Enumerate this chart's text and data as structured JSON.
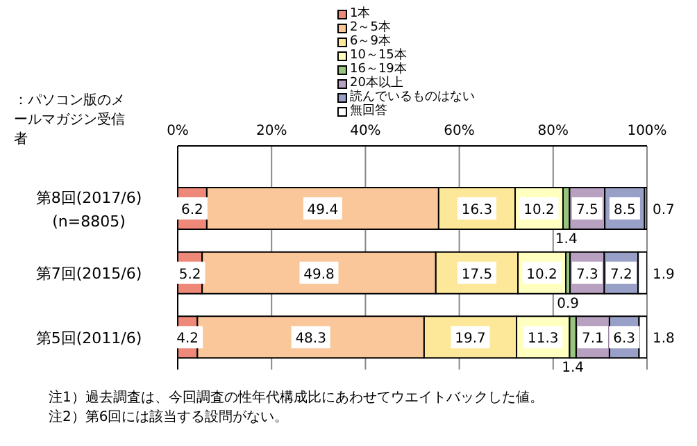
{
  "chart_data": {
    "type": "bar",
    "orientation": "horizontal",
    "stacked": true,
    "subtitle": "：パソコン版のメールマガジン受信者",
    "categories": [
      "第8回(2017/6)\n(n=8805)",
      "第7回(2015/6)",
      "第5回(2011/6)"
    ],
    "series": [
      {
        "name": "1本",
        "color": "#ee8878",
        "values": [
          6.2,
          5.2,
          4.2
        ]
      },
      {
        "name": "2～5本",
        "color": "#f9c799",
        "values": [
          49.4,
          49.8,
          48.3
        ]
      },
      {
        "name": "6～9本",
        "color": "#fde89a",
        "values": [
          16.3,
          17.5,
          19.7
        ]
      },
      {
        "name": "10～15本",
        "color": "#ffffc0",
        "values": [
          10.2,
          10.2,
          11.3
        ]
      },
      {
        "name": "16～19本",
        "color": "#99c580",
        "values": [
          1.4,
          0.9,
          1.4
        ]
      },
      {
        "name": "20本以上",
        "color": "#b8a0c0",
        "values": [
          7.5,
          7.3,
          7.1
        ]
      },
      {
        "name": "読んでいるものはない",
        "color": "#98a0c8",
        "values": [
          8.5,
          7.2,
          6.3
        ]
      },
      {
        "name": "無回答",
        "color": "#ffffff",
        "values": [
          0.7,
          1.9,
          1.8
        ]
      }
    ],
    "xlim": [
      0,
      100
    ],
    "xticks": [
      {
        "value": 0,
        "label": "0%"
      },
      {
        "value": 20,
        "label": "20%"
      },
      {
        "value": 40,
        "label": "40%"
      },
      {
        "value": 60,
        "label": "60%"
      },
      {
        "value": 80,
        "label": "80%"
      },
      {
        "value": 100,
        "label": "100%"
      }
    ],
    "grid": "x",
    "legend": "top",
    "data_labels": true,
    "annotations": [
      "注1）過去調査は、今回調査の性年代構成比にあわせてウエイトバックした値。",
      "注2）第6回には該当する設問がない。"
    ]
  }
}
